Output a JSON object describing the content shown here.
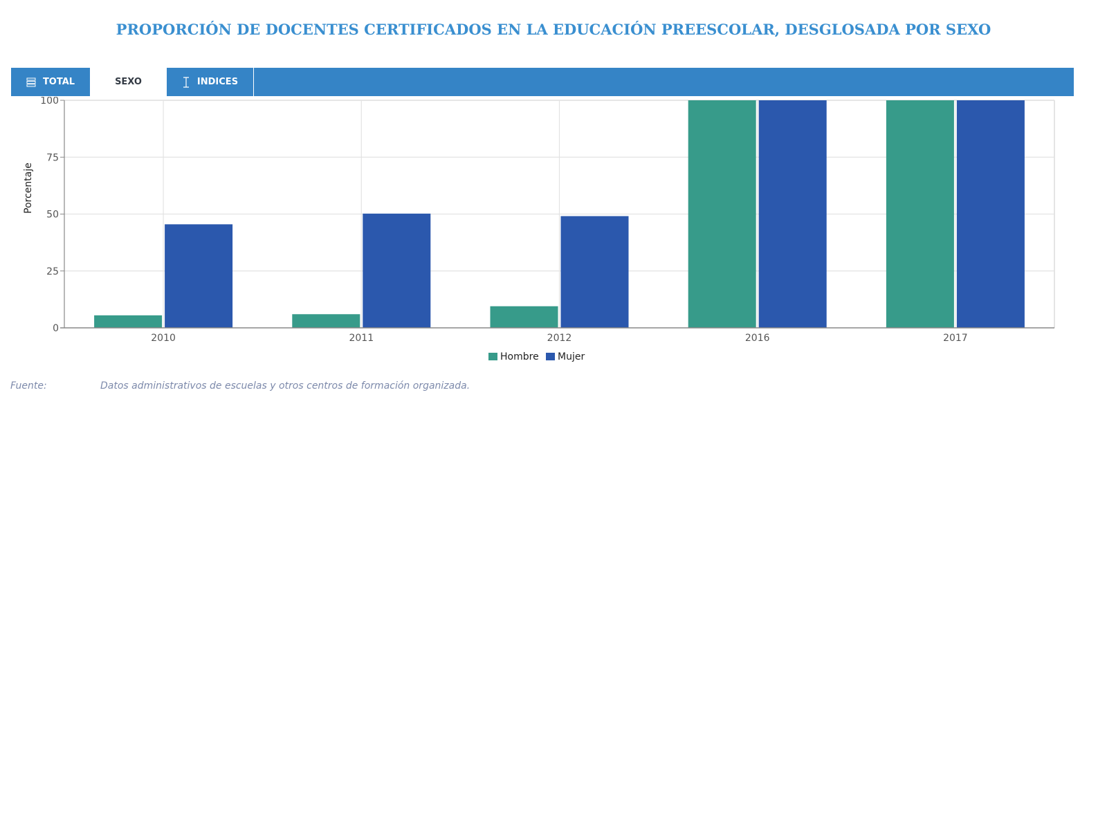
{
  "title": "PROPORCIÓN DE DOCENTES CERTIFICADOS EN LA EDUCACIÓN PREESCOLAR, DESGLOSADA POR SEXO",
  "tabs": [
    {
      "label": "TOTAL",
      "icon": "list-icon",
      "active": false
    },
    {
      "label": "SEXO",
      "icon": "",
      "active": true
    },
    {
      "label": "INDICES",
      "icon": "text-cursor-icon",
      "active": false
    }
  ],
  "colors": {
    "accent": "#3584c6",
    "title": "#3a8fd0",
    "hombre": "#379b8a",
    "mujer": "#2b58ad"
  },
  "chart_data": {
    "type": "bar",
    "categories": [
      "2010",
      "2011",
      "2012",
      "2016",
      "2017"
    ],
    "series": [
      {
        "name": "Hombre",
        "values": [
          5.5,
          6,
          9.5,
          100,
          100
        ]
      },
      {
        "name": "Mujer",
        "values": [
          45.5,
          50.2,
          49.1,
          100,
          100
        ]
      }
    ],
    "xlabel": "",
    "ylabel": "Porcentaje",
    "ylim": [
      0,
      100
    ],
    "yticks": [
      "0",
      "25",
      "50",
      "75",
      "100"
    ],
    "grid": true,
    "legend": "bottom-center"
  },
  "source": {
    "label": "Fuente:",
    "text": "Datos administrativos de escuelas y otros centros de formación organizada."
  }
}
